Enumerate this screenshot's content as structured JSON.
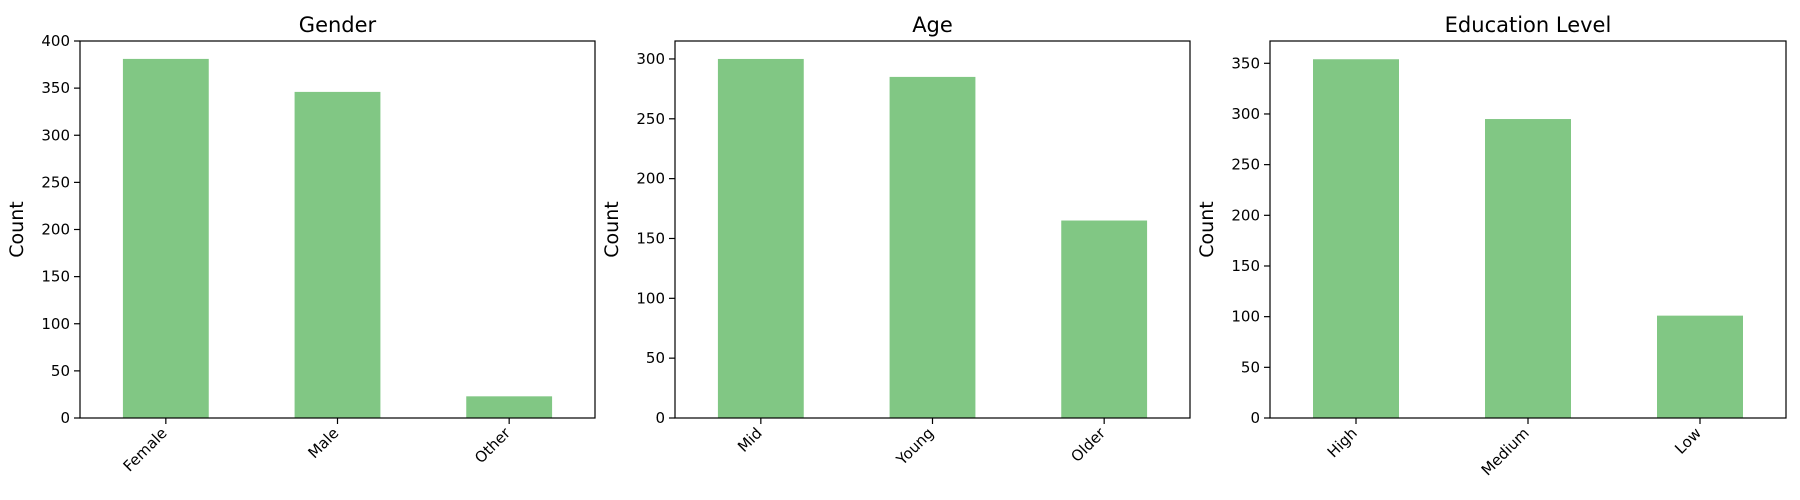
{
  "chart_data": [
    {
      "type": "bar",
      "title": "Gender",
      "xlabel": "",
      "ylabel": "Count",
      "categories": [
        "Female",
        "Male",
        "Other"
      ],
      "values": [
        381,
        346,
        23
      ],
      "ylim": [
        0,
        400
      ],
      "yticks": [
        0,
        50,
        100,
        150,
        200,
        250,
        300,
        350,
        400
      ],
      "bar_color": "#81c784",
      "grid": false,
      "legend": "none"
    },
    {
      "type": "bar",
      "title": "Age",
      "xlabel": "",
      "ylabel": "Count",
      "categories": [
        "Mid",
        "Young",
        "Older"
      ],
      "values": [
        300,
        285,
        165
      ],
      "ylim": [
        0,
        315
      ],
      "yticks": [
        0,
        50,
        100,
        150,
        200,
        250,
        300
      ],
      "bar_color": "#81c784",
      "grid": false,
      "legend": "none"
    },
    {
      "type": "bar",
      "title": "Education Level",
      "xlabel": "",
      "ylabel": "Count",
      "categories": [
        "High",
        "Medium",
        "Low"
      ],
      "values": [
        354,
        295,
        101
      ],
      "ylim": [
        0,
        372
      ],
      "yticks": [
        0,
        50,
        100,
        150,
        200,
        250,
        300,
        350
      ],
      "bar_color": "#81c784",
      "grid": false,
      "legend": "none"
    }
  ]
}
